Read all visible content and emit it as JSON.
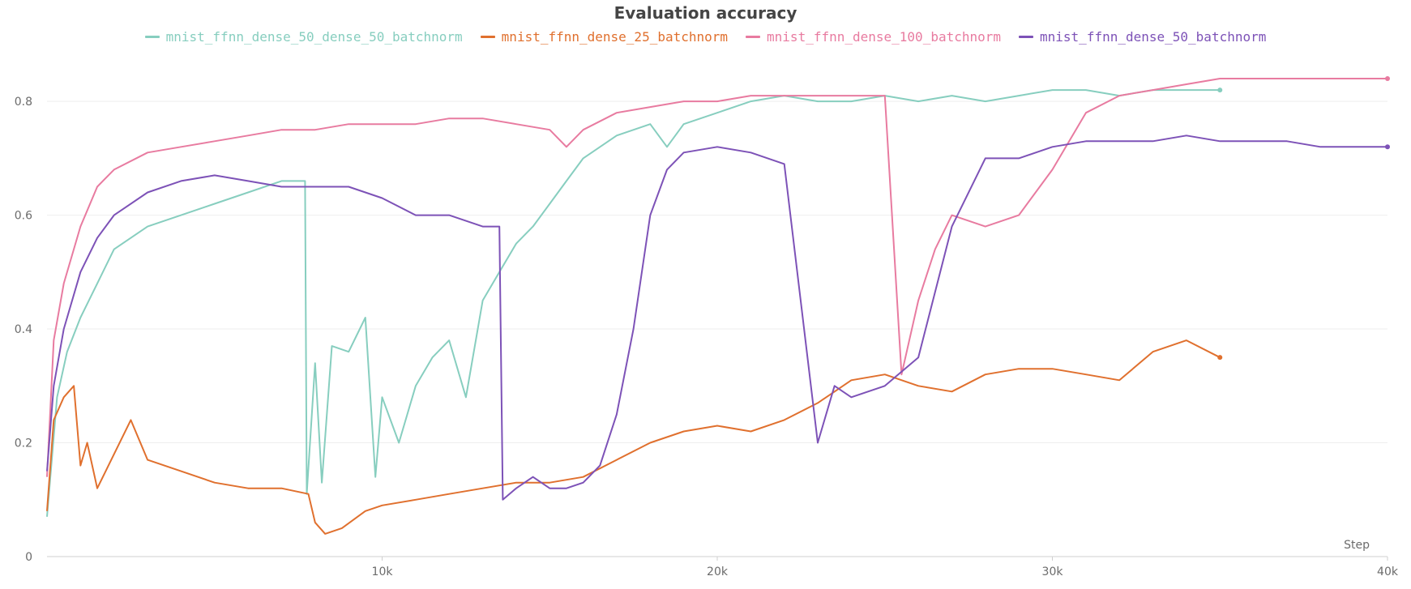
{
  "chart_data": {
    "type": "line",
    "title": "Evaluation accuracy",
    "xlabel": "Step",
    "ylabel": "",
    "xlim": [
      0,
      40000
    ],
    "ylim": [
      0,
      0.85
    ],
    "grid": true,
    "legend_position": "top-center",
    "xticks": [
      {
        "value": 10000,
        "label": "10k"
      },
      {
        "value": 20000,
        "label": "20k"
      },
      {
        "value": 30000,
        "label": "30k"
      },
      {
        "value": 40000,
        "label": "40k"
      }
    ],
    "yticks": [
      {
        "value": 0,
        "label": "0"
      },
      {
        "value": 0.2,
        "label": "0.2"
      },
      {
        "value": 0.4,
        "label": "0.4"
      },
      {
        "value": 0.6,
        "label": "0.6"
      },
      {
        "value": 0.8,
        "label": "0.8"
      }
    ],
    "series": [
      {
        "name": "mnist_ffnn_dense_50_dense_50_batchnorm",
        "color": "#87cebf",
        "x": [
          0,
          300,
          600,
          1000,
          1500,
          2000,
          3000,
          4000,
          5000,
          6000,
          7000,
          7700,
          7750,
          8000,
          8200,
          8500,
          9000,
          9500,
          9800,
          10000,
          10500,
          11000,
          11500,
          12000,
          12500,
          13000,
          13500,
          14000,
          14500,
          15000,
          15500,
          16000,
          17000,
          18000,
          18500,
          19000,
          20000,
          21000,
          22000,
          23000,
          24000,
          25000,
          26000,
          27000,
          28000,
          29000,
          30000,
          31000,
          32000,
          33000,
          34000,
          35000
        ],
        "y": [
          0.07,
          0.28,
          0.36,
          0.42,
          0.48,
          0.54,
          0.58,
          0.6,
          0.62,
          0.64,
          0.66,
          0.66,
          0.11,
          0.34,
          0.13,
          0.37,
          0.36,
          0.42,
          0.14,
          0.28,
          0.2,
          0.3,
          0.35,
          0.38,
          0.28,
          0.45,
          0.5,
          0.55,
          0.58,
          0.62,
          0.66,
          0.7,
          0.74,
          0.76,
          0.72,
          0.76,
          0.78,
          0.8,
          0.81,
          0.8,
          0.8,
          0.81,
          0.8,
          0.81,
          0.8,
          0.81,
          0.82,
          0.82,
          0.81,
          0.82,
          0.82,
          0.82
        ]
      },
      {
        "name": "mnist_ffnn_dense_25_batchnorm",
        "color": "#e0702e",
        "x": [
          0,
          200,
          500,
          800,
          1000,
          1200,
          1500,
          2000,
          2500,
          3000,
          4000,
          5000,
          6000,
          7000,
          7800,
          8000,
          8300,
          8800,
          9500,
          10000,
          11000,
          12000,
          13000,
          14000,
          15000,
          16000,
          17000,
          18000,
          19000,
          20000,
          21000,
          22000,
          23000,
          24000,
          25000,
          26000,
          27000,
          28000,
          29000,
          30000,
          31000,
          32000,
          33000,
          34000,
          35000
        ],
        "y": [
          0.08,
          0.24,
          0.28,
          0.3,
          0.16,
          0.2,
          0.12,
          0.18,
          0.24,
          0.17,
          0.15,
          0.13,
          0.12,
          0.12,
          0.11,
          0.06,
          0.04,
          0.05,
          0.08,
          0.09,
          0.1,
          0.11,
          0.12,
          0.13,
          0.13,
          0.14,
          0.17,
          0.2,
          0.22,
          0.23,
          0.22,
          0.24,
          0.27,
          0.31,
          0.32,
          0.3,
          0.29,
          0.32,
          0.33,
          0.33,
          0.32,
          0.31,
          0.36,
          0.38,
          0.35
        ]
      },
      {
        "name": "mnist_ffnn_dense_100_batchnorm",
        "color": "#e87ba0",
        "x": [
          0,
          200,
          500,
          1000,
          1500,
          2000,
          3000,
          4000,
          5000,
          6000,
          7000,
          8000,
          9000,
          10000,
          11000,
          12000,
          13000,
          14000,
          15000,
          15500,
          16000,
          17000,
          18000,
          19000,
          20000,
          21000,
          22000,
          23000,
          24000,
          25000,
          25500,
          26000,
          26500,
          27000,
          28000,
          29000,
          30000,
          31000,
          32000,
          33000,
          34000,
          35000,
          36000,
          37000,
          38000,
          39000,
          40000
        ],
        "y": [
          0.14,
          0.38,
          0.48,
          0.58,
          0.65,
          0.68,
          0.71,
          0.72,
          0.73,
          0.74,
          0.75,
          0.75,
          0.76,
          0.76,
          0.76,
          0.77,
          0.77,
          0.76,
          0.75,
          0.72,
          0.75,
          0.78,
          0.79,
          0.8,
          0.8,
          0.81,
          0.81,
          0.81,
          0.81,
          0.81,
          0.32,
          0.45,
          0.54,
          0.6,
          0.58,
          0.6,
          0.68,
          0.78,
          0.81,
          0.82,
          0.83,
          0.84,
          0.84,
          0.84,
          0.84,
          0.84,
          0.84
        ]
      },
      {
        "name": "mnist_ffnn_dense_50_batchnorm",
        "color": "#7d52b7",
        "x": [
          0,
          200,
          500,
          1000,
          1500,
          2000,
          3000,
          4000,
          5000,
          6000,
          7000,
          8000,
          9000,
          10000,
          11000,
          12000,
          13000,
          13500,
          13600,
          14000,
          14500,
          15000,
          15500,
          16000,
          16500,
          17000,
          17500,
          18000,
          18500,
          19000,
          20000,
          21000,
          22000,
          23000,
          23500,
          24000,
          25000,
          26000,
          27000,
          28000,
          29000,
          30000,
          31000,
          32000,
          33000,
          34000,
          35000,
          36000,
          37000,
          38000,
          39000,
          40000
        ],
        "y": [
          0.15,
          0.3,
          0.4,
          0.5,
          0.56,
          0.6,
          0.64,
          0.66,
          0.67,
          0.66,
          0.65,
          0.65,
          0.65,
          0.63,
          0.6,
          0.6,
          0.58,
          0.58,
          0.1,
          0.12,
          0.14,
          0.12,
          0.12,
          0.13,
          0.16,
          0.25,
          0.4,
          0.6,
          0.68,
          0.71,
          0.72,
          0.71,
          0.69,
          0.2,
          0.3,
          0.28,
          0.3,
          0.35,
          0.58,
          0.7,
          0.7,
          0.72,
          0.73,
          0.73,
          0.73,
          0.74,
          0.73,
          0.73,
          0.73,
          0.72,
          0.72,
          0.72
        ]
      }
    ]
  }
}
